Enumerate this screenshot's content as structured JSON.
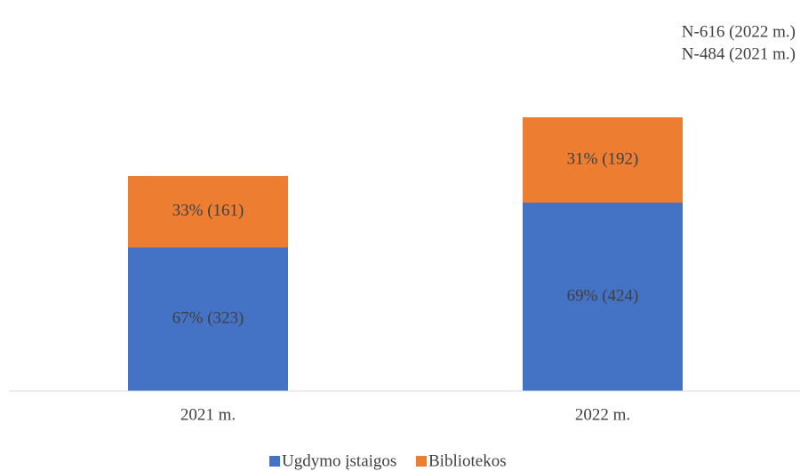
{
  "chart_data": {
    "type": "stacked_bar",
    "annotations": [
      "N-616 (2022 m.)",
      "N-484 (2021 m.)"
    ],
    "categories": [
      "2021 m.",
      "2022 m."
    ],
    "series": [
      {
        "name": "Ugdymo įstaigos",
        "color": "#4472c4",
        "values": [
          323,
          424
        ],
        "value_labels": [
          "67% (323)",
          "69% (424)"
        ]
      },
      {
        "name": "Bibliotekos",
        "color": "#ed7d31",
        "values": [
          161,
          192
        ],
        "value_labels": [
          "33% (161)",
          "31% (192)"
        ]
      }
    ],
    "ylim": [
      0,
      680
    ],
    "legend": "bottom"
  }
}
